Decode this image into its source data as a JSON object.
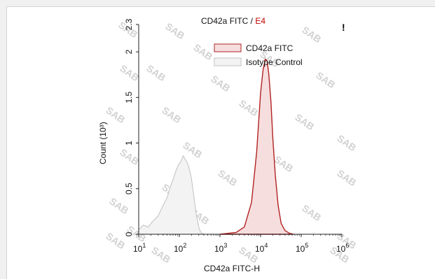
{
  "chart_data": {
    "type": "area",
    "title": "CD42a FITC / E4",
    "title_parts": [
      "CD42a FITC / ",
      "E4"
    ],
    "title_gate_color": "#c00000",
    "corner_mark": "!",
    "xlabel": "CD42a FITC-H",
    "ylabel": "Count  (10³)",
    "x_scale": "log",
    "xlim": [
      10,
      1000000
    ],
    "ylim": [
      0,
      2.3
    ],
    "x_ticks": [
      {
        "base": "10",
        "exp": "1"
      },
      {
        "base": "10",
        "exp": "2"
      },
      {
        "base": "10",
        "exp": "3"
      },
      {
        "base": "10",
        "exp": "4"
      },
      {
        "base": "10",
        "exp": "5"
      },
      {
        "base": "10",
        "exp": "6"
      }
    ],
    "y_ticks": [
      "0",
      "0.5",
      "1",
      "1.5",
      "2",
      "2.3"
    ],
    "grid": false,
    "legend_placement": "top-right",
    "watermark": "SAB",
    "series": [
      {
        "name": "CD42a FITC",
        "color": "#b22222",
        "fill": "#f6dede",
        "x": [
          1000,
          2500,
          4000,
          6000,
          8000,
          10000,
          11500,
          13000,
          14500,
          16000,
          18000,
          20000,
          23000,
          27000,
          32000,
          40000,
          52000,
          65000
        ],
        "y": [
          0,
          0.02,
          0.08,
          0.35,
          0.9,
          1.55,
          1.8,
          1.92,
          1.9,
          1.75,
          1.45,
          1.05,
          0.65,
          0.32,
          0.12,
          0.04,
          0.01,
          0
        ]
      },
      {
        "name": "Isotype Control",
        "color": "#c0c0c0",
        "fill": "#f3f3f3",
        "x": [
          10,
          13,
          17,
          22,
          30,
          40,
          50,
          60,
          70,
          80,
          95,
          110,
          125,
          140,
          160,
          180,
          200,
          230,
          260,
          300,
          330,
          360,
          400
        ],
        "y": [
          0.05,
          0.1,
          0.08,
          0.14,
          0.2,
          0.32,
          0.4,
          0.52,
          0.6,
          0.68,
          0.76,
          0.8,
          0.86,
          0.82,
          0.78,
          0.7,
          0.6,
          0.4,
          0.22,
          0.08,
          0.03,
          0.01,
          0
        ]
      }
    ]
  }
}
